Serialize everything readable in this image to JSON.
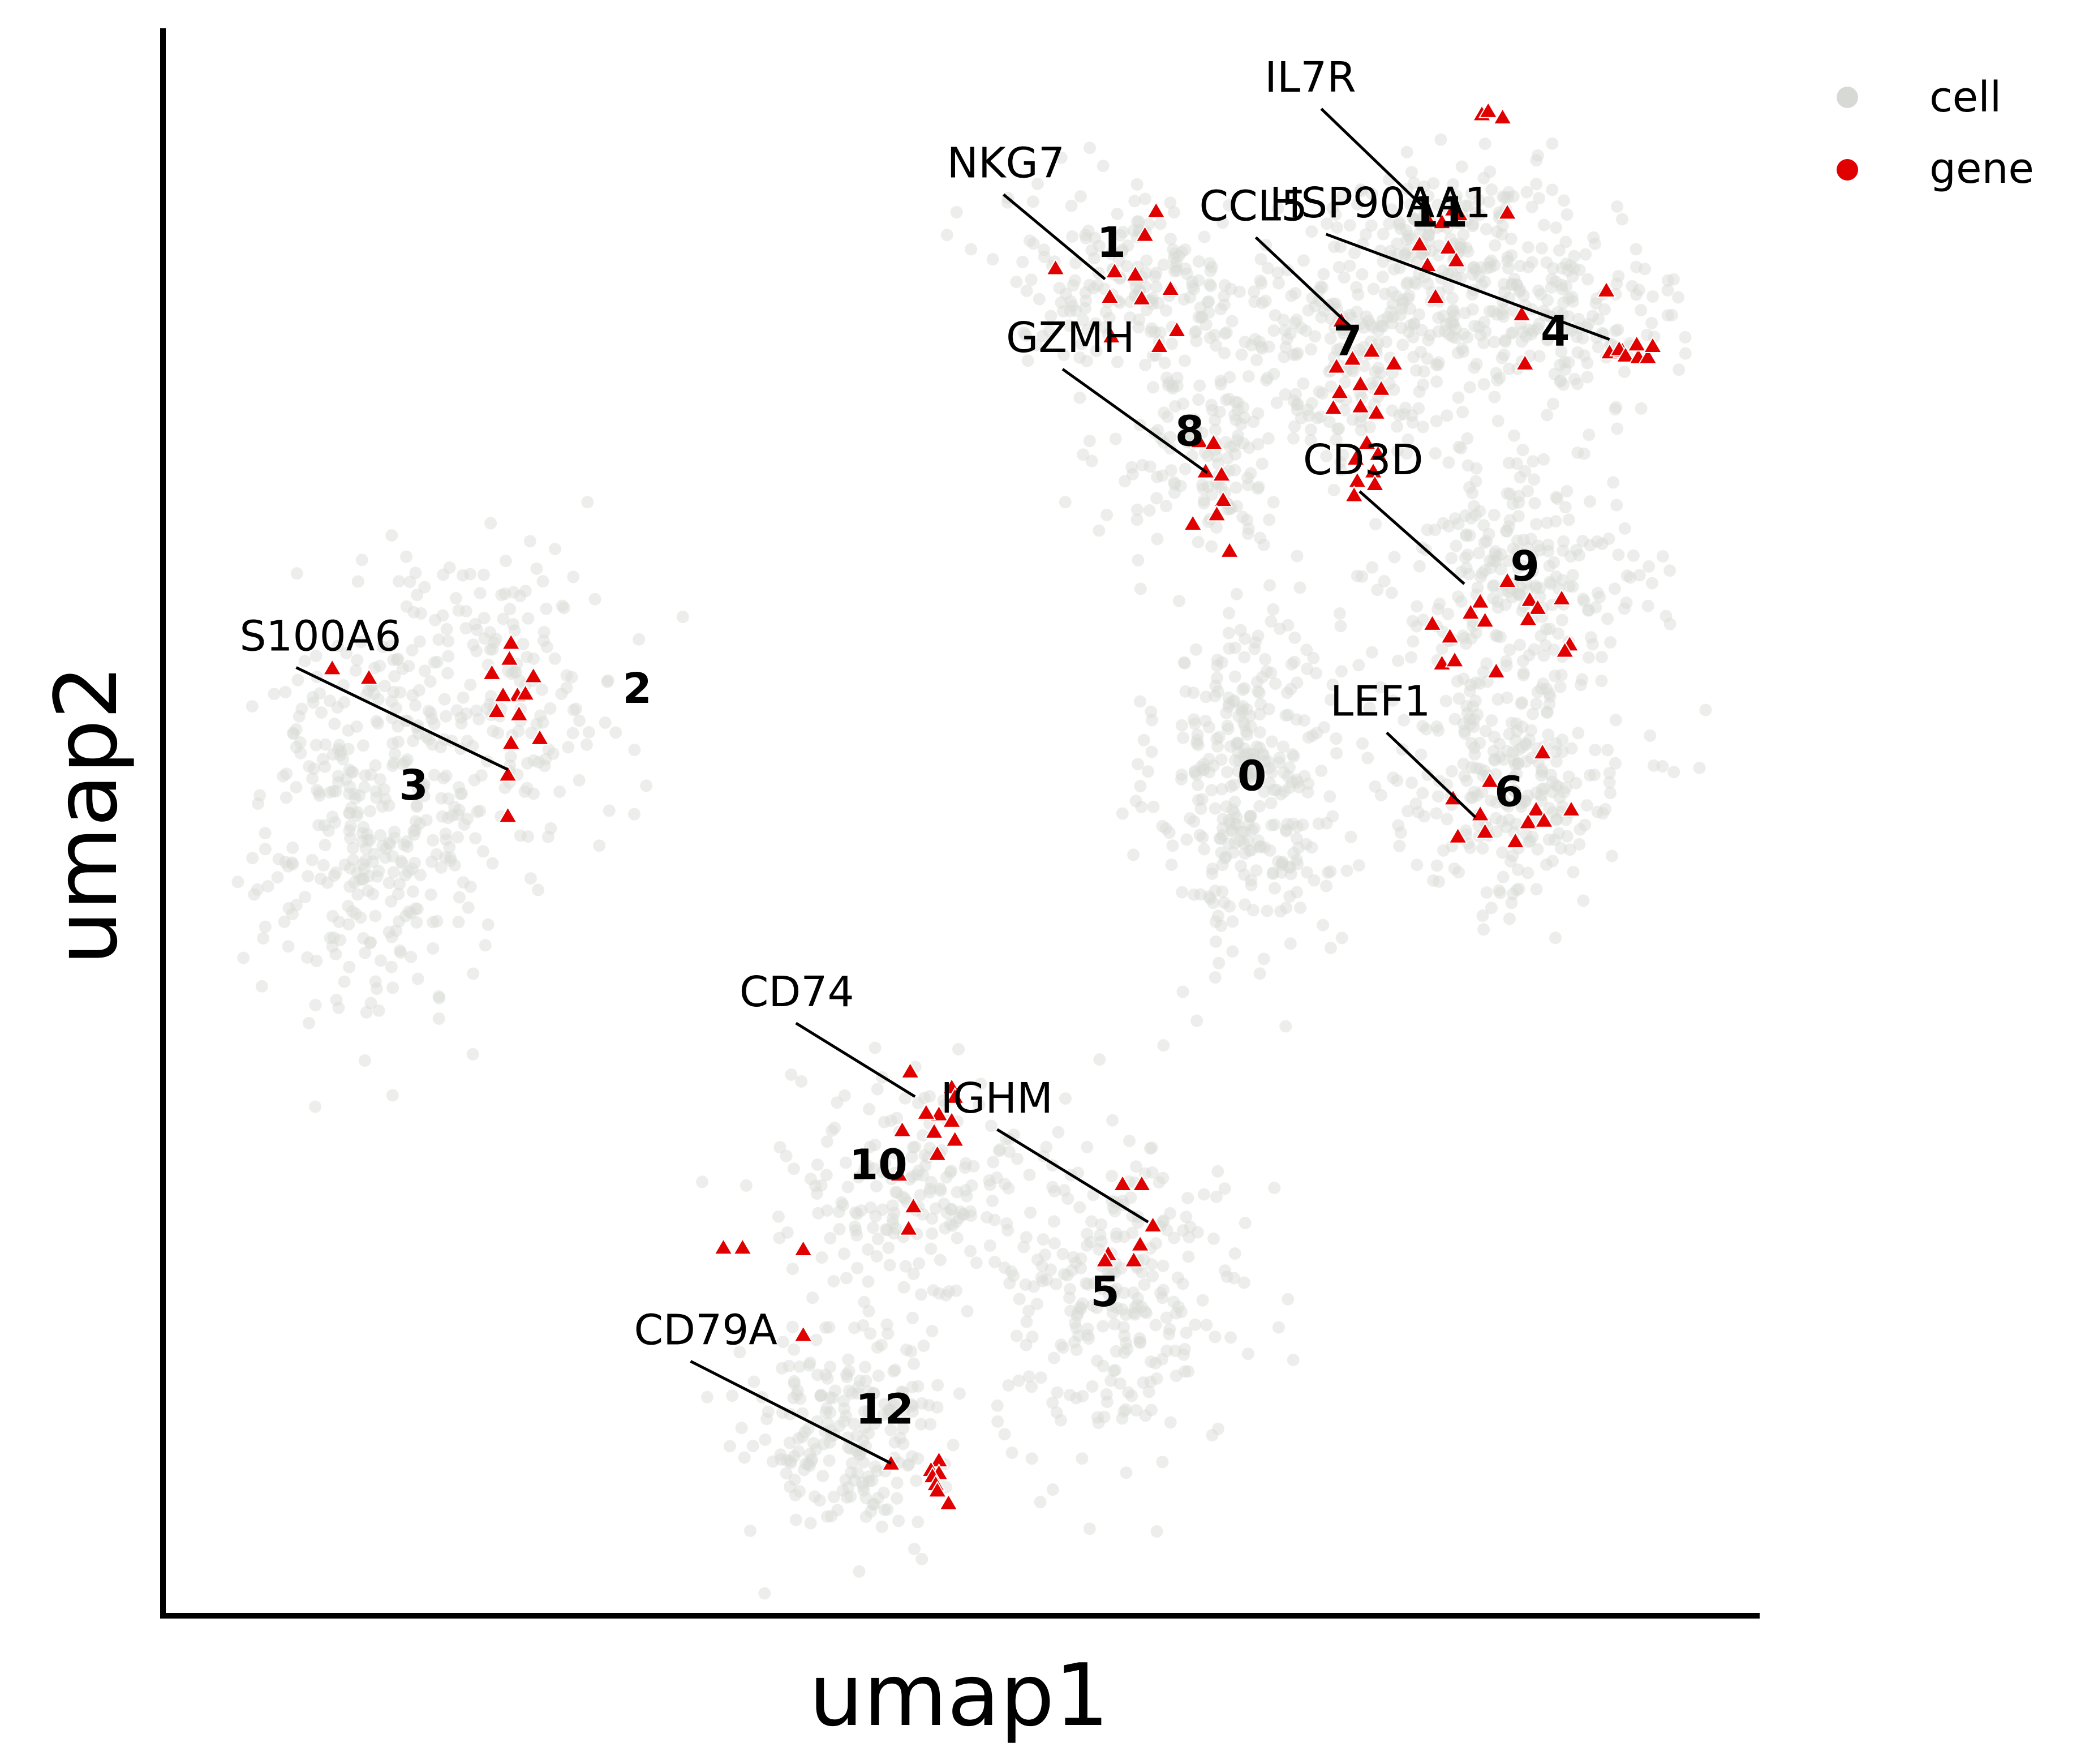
{
  "chart_data": {
    "type": "scatter",
    "xlabel": "umap1",
    "ylabel": "umap2",
    "xlim": [
      0,
      100
    ],
    "ylim": [
      0,
      100
    ],
    "grid": false,
    "legend": {
      "placement": "top-right",
      "entries": [
        {
          "label": "cell",
          "color": "#d7d9d4"
        },
        {
          "label": "gene",
          "color": "#e00000"
        }
      ]
    },
    "clusters": [
      {
        "label": "0",
        "x": 68,
        "y": 53,
        "sx": 3.5,
        "sy": 7.5,
        "n": 330
      },
      {
        "label": "1",
        "x": 61,
        "y": 84,
        "sx": 5.5,
        "sy": 3.5,
        "n": 200
      },
      {
        "label": "2",
        "x": 21,
        "y": 58,
        "sx": 5,
        "sy": 6,
        "n": 180
      },
      {
        "label": "3",
        "x": 13,
        "y": 50,
        "sx": 4.5,
        "sy": 8,
        "n": 330
      },
      {
        "label": "4",
        "x": 87,
        "y": 82,
        "sx": 5,
        "sy": 3.5,
        "n": 200
      },
      {
        "label": "5",
        "x": 60,
        "y": 20,
        "sx": 5,
        "sy": 6,
        "n": 260
      },
      {
        "label": "6",
        "x": 84,
        "y": 52,
        "sx": 5,
        "sy": 4.5,
        "n": 250
      },
      {
        "label": "7",
        "x": 74,
        "y": 79,
        "sx": 5,
        "sy": 5,
        "n": 230
      },
      {
        "label": "8",
        "x": 65,
        "y": 73,
        "sx": 3.5,
        "sy": 3.5,
        "n": 130
      },
      {
        "label": "9",
        "x": 85,
        "y": 65,
        "sx": 5,
        "sy": 5,
        "n": 260
      },
      {
        "label": "10",
        "x": 47,
        "y": 27,
        "sx": 5,
        "sy": 4.5,
        "n": 200
      },
      {
        "label": "11",
        "x": 80,
        "y": 87,
        "sx": 4,
        "sy": 3.5,
        "n": 170
      },
      {
        "label": "12",
        "x": 43,
        "y": 12,
        "sx": 4,
        "sy": 4.5,
        "n": 220
      }
    ],
    "gene_points": [
      [
        82.6,
        94.6
      ],
      [
        83.0,
        94.8
      ],
      [
        83.9,
        94.4
      ],
      [
        62.2,
        88.5
      ],
      [
        61.5,
        87.0
      ],
      [
        55.9,
        84.9
      ],
      [
        59.6,
        84.7
      ],
      [
        60.9,
        84.5
      ],
      [
        63.1,
        83.6
      ],
      [
        59.3,
        83.1
      ],
      [
        61.3,
        83.0
      ],
      [
        63.5,
        81.0
      ],
      [
        59.4,
        80.6
      ],
      [
        62.4,
        80.0
      ],
      [
        79.2,
        88.0
      ],
      [
        80.8,
        88.6
      ],
      [
        80.1,
        87.8
      ],
      [
        81.2,
        88.3
      ],
      [
        84.2,
        88.4
      ],
      [
        78.7,
        86.4
      ],
      [
        80.5,
        86.2
      ],
      [
        79.2,
        85.1
      ],
      [
        81.0,
        85.4
      ],
      [
        79.7,
        83.1
      ],
      [
        73.8,
        81.6
      ],
      [
        74.5,
        79.2
      ],
      [
        75.7,
        79.7
      ],
      [
        77.1,
        78.9
      ],
      [
        73.5,
        78.7
      ],
      [
        75.0,
        77.6
      ],
      [
        73.7,
        77.1
      ],
      [
        76.3,
        77.3
      ],
      [
        75.0,
        76.2
      ],
      [
        76.0,
        75.8
      ],
      [
        73.3,
        76.1
      ],
      [
        75.4,
        73.9
      ],
      [
        74.7,
        72.9
      ],
      [
        76.1,
        73.2
      ],
      [
        75.8,
        72.1
      ],
      [
        74.8,
        71.5
      ],
      [
        75.9,
        71.3
      ],
      [
        74.6,
        70.6
      ],
      [
        90.4,
        83.5
      ],
      [
        85.1,
        82.0
      ],
      [
        90.6,
        79.6
      ],
      [
        91.4,
        79.7
      ],
      [
        91.2,
        79.8
      ],
      [
        91.6,
        79.4
      ],
      [
        92.4,
        79.3
      ],
      [
        92.3,
        80.1
      ],
      [
        93.0,
        79.3
      ],
      [
        93.3,
        80.0
      ],
      [
        85.3,
        78.9
      ],
      [
        64.9,
        74.0
      ],
      [
        65.8,
        73.9
      ],
      [
        65.3,
        72.1
      ],
      [
        66.4,
        70.3
      ],
      [
        66.3,
        71.9
      ],
      [
        64.5,
        68.8
      ],
      [
        66.0,
        69.4
      ],
      [
        66.8,
        67.1
      ],
      [
        84.2,
        65.2
      ],
      [
        82.5,
        63.9
      ],
      [
        87.6,
        64.1
      ],
      [
        85.6,
        64.0
      ],
      [
        86.1,
        63.5
      ],
      [
        85.5,
        62.8
      ],
      [
        81.9,
        63.2
      ],
      [
        82.8,
        62.7
      ],
      [
        79.5,
        62.5
      ],
      [
        80.6,
        61.7
      ],
      [
        88.1,
        61.2
      ],
      [
        87.8,
        60.8
      ],
      [
        80.1,
        60.0
      ],
      [
        80.9,
        60.2
      ],
      [
        83.5,
        59.5
      ],
      [
        86.4,
        54.4
      ],
      [
        83.1,
        52.6
      ],
      [
        80.8,
        51.5
      ],
      [
        86.0,
        50.8
      ],
      [
        88.2,
        50.8
      ],
      [
        82.5,
        50.5
      ],
      [
        85.5,
        50.0
      ],
      [
        86.5,
        50.1
      ],
      [
        82.8,
        49.4
      ],
      [
        81.1,
        49.1
      ],
      [
        84.7,
        48.8
      ],
      [
        21.8,
        61.3
      ],
      [
        21.7,
        60.3
      ],
      [
        20.6,
        59.4
      ],
      [
        23.2,
        59.2
      ],
      [
        10.6,
        59.7
      ],
      [
        12.9,
        59.1
      ],
      [
        22.2,
        58.0
      ],
      [
        21.3,
        58.0
      ],
      [
        22.7,
        58.1
      ],
      [
        20.9,
        57.0
      ],
      [
        22.3,
        56.8
      ],
      [
        23.6,
        55.3
      ],
      [
        21.8,
        55.0
      ],
      [
        21.6,
        53.0
      ],
      [
        21.6,
        50.4
      ],
      [
        46.8,
        34.3
      ],
      [
        49.4,
        33.3
      ],
      [
        49.6,
        32.7
      ],
      [
        48.6,
        31.6
      ],
      [
        47.8,
        31.7
      ],
      [
        49.4,
        31.2
      ],
      [
        48.3,
        30.5
      ],
      [
        49.6,
        30.0
      ],
      [
        46.3,
        30.6
      ],
      [
        48.5,
        29.1
      ],
      [
        46.1,
        27.8
      ],
      [
        47.0,
        25.8
      ],
      [
        46.7,
        24.4
      ],
      [
        35.1,
        23.2
      ],
      [
        36.3,
        23.2
      ],
      [
        40.1,
        23.1
      ],
      [
        60.1,
        27.2
      ],
      [
        61.3,
        27.2
      ],
      [
        62.0,
        24.6
      ],
      [
        61.2,
        23.4
      ],
      [
        59.2,
        22.8
      ],
      [
        60.8,
        22.4
      ],
      [
        59.0,
        22.4
      ],
      [
        40.1,
        17.7
      ],
      [
        45.6,
        9.6
      ],
      [
        48.6,
        9.8
      ],
      [
        48.1,
        9.2
      ],
      [
        48.6,
        9.0
      ],
      [
        48.2,
        8.8
      ],
      [
        48.4,
        8.3
      ],
      [
        48.5,
        7.9
      ],
      [
        49.2,
        7.1
      ]
    ],
    "gene_annotations": [
      {
        "label": "IL7R",
        "text_x": 69,
        "text_y": 96,
        "anchor_x": 79.4,
        "anchor_y": 88.3
      },
      {
        "label": "NKG7",
        "text_x": 49.1,
        "text_y": 90.6,
        "anchor_x": 59.0,
        "anchor_y": 84.2
      },
      {
        "label": "CCL5",
        "text_x": 64.9,
        "text_y": 87.9,
        "anchor_x": 74.5,
        "anchor_y": 81.1
      },
      {
        "label": "HSP90AA1",
        "text_x": 69.3,
        "text_y": 88.1,
        "anchor_x": 90.6,
        "anchor_y": 80.4
      },
      {
        "label": "GZMH",
        "text_x": 52.8,
        "text_y": 79.6,
        "anchor_x": 65.4,
        "anchor_y": 72.0
      },
      {
        "label": "CD3D",
        "text_x": 71.4,
        "text_y": 71.9,
        "anchor_x": 81.5,
        "anchor_y": 65.0
      },
      {
        "label": "S100A6",
        "text_x": 4.8,
        "text_y": 60.8,
        "anchor_x": 21.6,
        "anchor_y": 53.3
      },
      {
        "label": "LEF1",
        "text_x": 73.1,
        "text_y": 56.7,
        "anchor_x": 82.2,
        "anchor_y": 50.3
      },
      {
        "label": "CD74",
        "text_x": 36.1,
        "text_y": 38.4,
        "anchor_x": 47.1,
        "anchor_y": 32.7
      },
      {
        "label": "IGHM",
        "text_x": 48.7,
        "text_y": 31.7,
        "anchor_x": 61.7,
        "anchor_y": 24.8
      },
      {
        "label": "CD79A",
        "text_x": 29.5,
        "text_y": 17.1,
        "anchor_x": 45.6,
        "anchor_y": 9.6
      }
    ],
    "cluster_label_positions": [
      {
        "label": "0",
        "x": 68.2,
        "y": 52.0
      },
      {
        "label": "1",
        "x": 59.4,
        "y": 85.6
      },
      {
        "label": "2",
        "x": 29.7,
        "y": 57.5
      },
      {
        "label": "3",
        "x": 15.7,
        "y": 51.4
      },
      {
        "label": "4",
        "x": 87.2,
        "y": 80.0
      },
      {
        "label": "5",
        "x": 59.0,
        "y": 19.5
      },
      {
        "label": "6",
        "x": 84.3,
        "y": 51.0
      },
      {
        "label": "7",
        "x": 74.2,
        "y": 79.4
      },
      {
        "label": "8",
        "x": 64.3,
        "y": 73.7
      },
      {
        "label": "9",
        "x": 85.3,
        "y": 65.2
      },
      {
        "label": "10",
        "x": 44.8,
        "y": 27.5
      },
      {
        "label": "11",
        "x": 79.9,
        "y": 87.5
      },
      {
        "label": "12",
        "x": 45.2,
        "y": 12.1
      }
    ]
  }
}
